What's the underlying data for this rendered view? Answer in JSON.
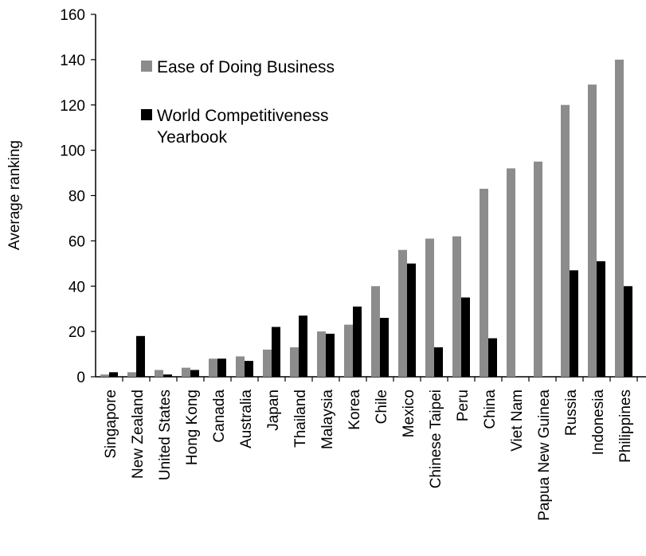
{
  "chart_data": {
    "type": "bar",
    "ylabel": "Average ranking",
    "ylim": [
      0,
      160
    ],
    "yticks": [
      "0",
      "20",
      "40",
      "60",
      "80",
      "100",
      "120",
      "140",
      "160"
    ],
    "grid": false,
    "legend_position": "top-left",
    "categories": [
      "Singapore",
      "New Zealand",
      "United States",
      "Hong Kong",
      "Canada",
      "Australia",
      "Japan",
      "Thailand",
      "Malaysia",
      "Korea",
      "Chile",
      "Mexico",
      "Chinese Taipei",
      "Peru",
      "China",
      "Viet Nam",
      "Papua New Guinea",
      "Russia",
      "Indonesia",
      "Philippines"
    ],
    "series": [
      {
        "name": "Ease of Doing Business",
        "color": "#8c8c8c",
        "values": [
          1,
          2,
          3,
          4,
          8,
          9,
          12,
          13,
          20,
          23,
          40,
          56,
          61,
          62,
          83,
          92,
          95,
          120,
          129,
          140
        ]
      },
      {
        "name": "World Competitiveness Yearbook",
        "color": "#000000",
        "values": [
          2,
          18,
          1,
          3,
          8,
          7,
          22,
          27,
          19,
          31,
          26,
          50,
          13,
          35,
          17,
          null,
          null,
          47,
          51,
          40
        ]
      }
    ]
  }
}
